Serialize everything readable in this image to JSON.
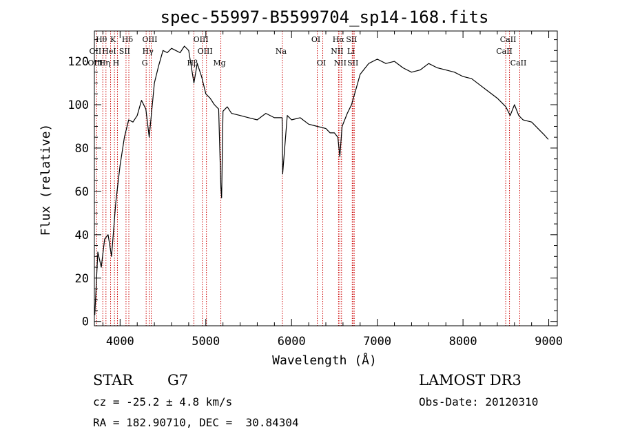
{
  "chart_data": {
    "type": "line",
    "title": "spec-55997-B5599704_sp14-168.fits",
    "xlabel": "Wavelength (Å)",
    "ylabel": "Flux (relative)",
    "xlim": [
      3700,
      9100
    ],
    "ylim": [
      -2,
      134
    ],
    "x_ticks": [
      4000,
      5000,
      6000,
      7000,
      8000,
      9000
    ],
    "y_ticks": [
      0,
      20,
      40,
      60,
      80,
      100,
      120
    ],
    "grid": false,
    "legend": "none",
    "line_color": "#000000",
    "marker_color": "#cc0000",
    "series": [
      {
        "x": [
          3705,
          3740,
          3780,
          3820,
          3860,
          3900,
          3950,
          4000,
          4050,
          4100,
          4150,
          4200,
          4250,
          4300,
          4340,
          4400,
          4450,
          4500,
          4550,
          4600,
          4650,
          4700,
          4750,
          4800,
          4861,
          4900,
          4950,
          5000,
          5050,
          5100,
          5150,
          5175,
          5184,
          5200,
          5250,
          5300,
          5400,
          5500,
          5600,
          5700,
          5800,
          5890,
          5896,
          5950,
          6000,
          6100,
          6200,
          6300,
          6400,
          6450,
          6500,
          6540,
          6563,
          6590,
          6650,
          6700,
          6750,
          6800,
          6900,
          7000,
          7100,
          7200,
          7300,
          7400,
          7500,
          7600,
          7700,
          7800,
          7900,
          8000,
          8100,
          8200,
          8300,
          8400,
          8500,
          8550,
          8600,
          8650,
          8700,
          8800,
          8900,
          8950,
          8995
        ],
        "values": [
          3,
          32,
          25,
          38,
          40,
          30,
          55,
          72,
          85,
          93,
          92,
          95,
          102,
          98,
          85,
          110,
          118,
          125,
          124,
          126,
          125,
          124,
          127,
          125,
          110,
          119,
          113,
          105,
          103,
          100,
          98,
          62,
          57,
          97,
          99,
          96,
          95,
          94,
          93,
          96,
          94,
          94,
          68,
          95,
          93,
          94,
          91,
          90,
          89,
          87,
          87,
          85,
          76,
          90,
          96,
          100,
          107,
          114,
          119,
          121,
          119,
          120,
          117,
          115,
          116,
          119,
          117,
          116,
          115,
          113,
          112,
          109,
          106,
          103,
          99,
          95,
          100,
          95,
          93,
          92,
          88,
          86,
          84
        ]
      }
    ],
    "lines": [
      {
        "label": "Hθ",
        "wl": 3798,
        "row": 1
      },
      {
        "label": "OII",
        "wl": 3727,
        "row": 2
      },
      {
        "label": "OIII",
        "wl": 3727,
        "row": 3
      },
      {
        "label": "K",
        "wl": 3934,
        "row": 1
      },
      {
        "label": "HeI",
        "wl": 3889,
        "row": 2
      },
      {
        "label": "Hη",
        "wl": 3835,
        "row": 3
      },
      {
        "label": "Hδ",
        "wl": 4102,
        "row": 1
      },
      {
        "label": "SII",
        "wl": 4069,
        "row": 2
      },
      {
        "label": "H",
        "wl": 3969,
        "row": 3
      },
      {
        "label": "OIII",
        "wl": 4363,
        "row": 1
      },
      {
        "label": "Hγ",
        "wl": 4341,
        "row": 2
      },
      {
        "label": "G",
        "wl": 4304,
        "row": 3
      },
      {
        "label": "Hβ",
        "wl": 4861,
        "row": 3
      },
      {
        "label": "OIII",
        "wl": 4959,
        "row": 1
      },
      {
        "label": "OIII",
        "wl": 5007,
        "row": 2
      },
      {
        "label": "Mg",
        "wl": 5175,
        "row": 3
      },
      {
        "label": "Na",
        "wl": 5893,
        "row": 2
      },
      {
        "label": "OI",
        "wl": 6300,
        "row": 1
      },
      {
        "label": "OI",
        "wl": 6364,
        "row": 3
      },
      {
        "label": "Hα",
        "wl": 6563,
        "row": 1
      },
      {
        "label": "NII",
        "wl": 6548,
        "row": 2
      },
      {
        "label": "NII",
        "wl": 6583,
        "row": 3
      },
      {
        "label": "SII",
        "wl": 6717,
        "row": 1
      },
      {
        "label": "Li",
        "wl": 6708,
        "row": 2
      },
      {
        "label": "SII",
        "wl": 6731,
        "row": 3
      },
      {
        "label": "CaII",
        "wl": 8542,
        "row": 1
      },
      {
        "label": "CaII",
        "wl": 8498,
        "row": 2
      },
      {
        "label": "CaII",
        "wl": 8662,
        "row": 3
      }
    ]
  },
  "info": {
    "class": "STAR",
    "subclass": "G7",
    "survey": "LAMOST DR3",
    "cz": "cz = -25.2 ± 4.8 km/s",
    "obsdate": "Obs-Date: 20120310",
    "radec": "RA = 182.90710, DEC =  30.84304"
  }
}
